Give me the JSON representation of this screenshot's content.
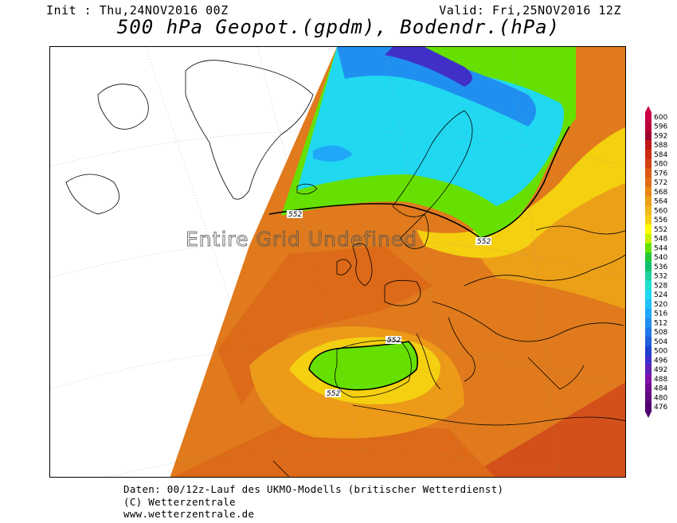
{
  "header": {
    "init": "Init : Thu,24NOV2016 00Z",
    "valid": "Valid: Fri,25NOV2016 12Z",
    "title": "500 hPa Geopot.(gpdm), Bodendr.(hPa)"
  },
  "map": {
    "overlay_text": "Entire Grid Undefined",
    "isoline_label": "552",
    "isoline_labels": [
      "552",
      "552",
      "552",
      "552"
    ]
  },
  "legend": {
    "levels": [
      "600",
      "596",
      "592",
      "588",
      "584",
      "580",
      "576",
      "572",
      "568",
      "564",
      "560",
      "556",
      "552",
      "548",
      "544",
      "540",
      "536",
      "532",
      "528",
      "524",
      "520",
      "516",
      "512",
      "508",
      "504",
      "500",
      "496",
      "492",
      "488",
      "484",
      "480",
      "476"
    ],
    "colors": [
      "#cc0044",
      "#b8003a",
      "#a00030",
      "#c01818",
      "#cc2a14",
      "#d44014",
      "#dc5a14",
      "#e07014",
      "#e88818",
      "#eca018",
      "#f0b818",
      "#f4d010",
      "#ffff00",
      "#c8f000",
      "#66e000",
      "#22c838",
      "#10c070",
      "#20d0a0",
      "#20e0d0",
      "#20d8f0",
      "#20c0f8",
      "#20a8f8",
      "#2090f0",
      "#2078e8",
      "#2060d8",
      "#2040d0",
      "#4030c8",
      "#6020b8",
      "#8010a8",
      "#700890",
      "#600880",
      "#500070"
    ]
  },
  "footer": {
    "line1": "Daten: 00/12z-Lauf des UKMO-Modells (britischer Wetterdienst)",
    "line2": "(C) Wetterzentrale",
    "line3": "www.wetterzentrale.de"
  }
}
